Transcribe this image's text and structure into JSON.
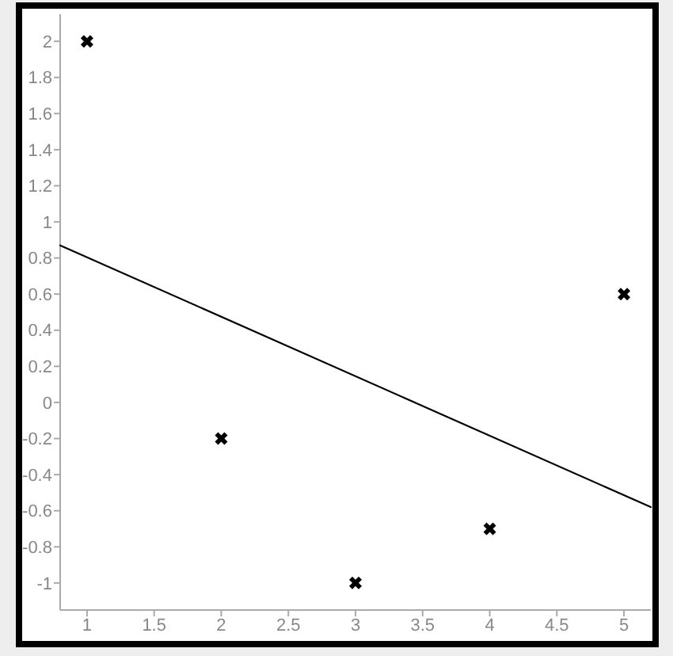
{
  "chart_data": {
    "type": "scatter",
    "xlim": [
      0.8,
      5.2
    ],
    "xticks": [
      1,
      1.5,
      2,
      2.5,
      3,
      3.5,
      4,
      4.5,
      5
    ],
    "ylim": [
      -1.15,
      2.15
    ],
    "yticks": [
      -1,
      -0.8,
      -0.6,
      -0.4,
      -0.2,
      0,
      0.2,
      0.4,
      0.6,
      0.8,
      1,
      1.2,
      1.4,
      1.6,
      1.8,
      2
    ],
    "series": [
      {
        "color": "#000000",
        "marker": "cross",
        "x": [
          1,
          2,
          3,
          4,
          5
        ],
        "values": [
          2,
          -0.2,
          -1,
          -0.7,
          0.6
        ]
      },
      {
        "type": "line",
        "color": "#000000",
        "marker": "none",
        "line_style": "solid",
        "x": [
          0.8,
          5.2
        ],
        "values": [
          0.87,
          -0.58
        ]
      }
    ]
  }
}
